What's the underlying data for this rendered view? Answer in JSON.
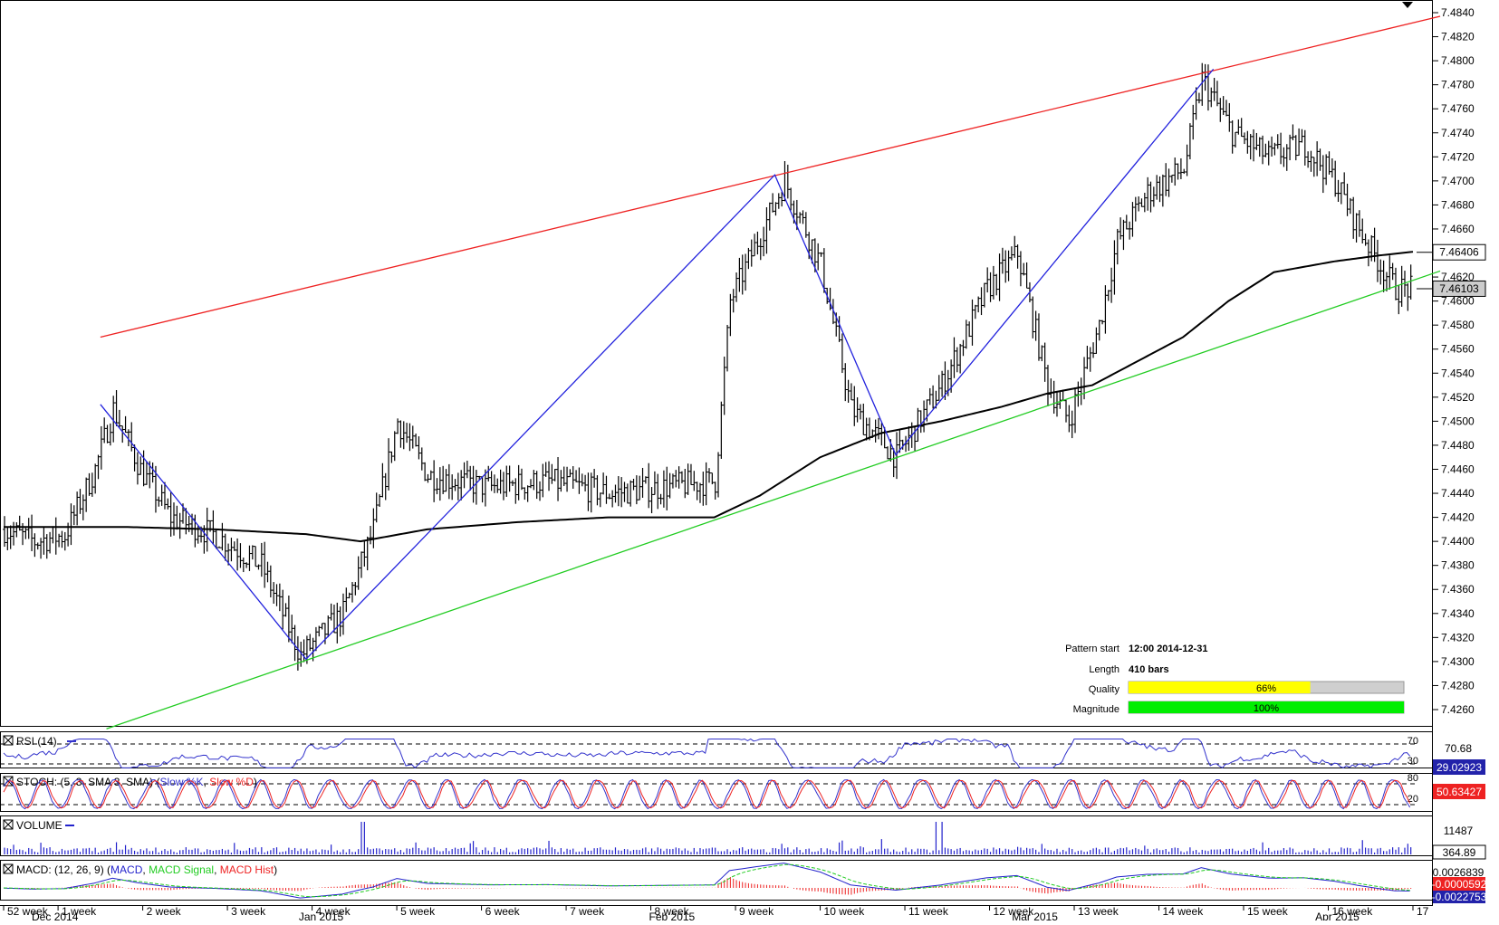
{
  "chart_data": {
    "type": "line",
    "subtype": "ohlc-bars",
    "pair_level_ticks": [
      7.484,
      7.482,
      7.48,
      7.478,
      7.476,
      7.474,
      7.472,
      7.47,
      7.468,
      7.466,
      7.464,
      7.462,
      7.46,
      7.458,
      7.456,
      7.454,
      7.452,
      7.45,
      7.448,
      7.446,
      7.444,
      7.442,
      7.44,
      7.438,
      7.436,
      7.434,
      7.432,
      7.43,
      7.428,
      7.426
    ],
    "tick_labels": [
      "7.4840",
      "7.4820",
      "7.4800",
      "7.4780",
      "7.4760",
      "7.4740",
      "7.4720",
      "7.4700",
      "7.4680",
      "7.4660",
      "7.4640",
      "7.4620",
      "7.4600",
      "7.4580",
      "7.4560",
      "7.4540",
      "7.4520",
      "7.4500",
      "7.4480",
      "7.4460",
      "7.4440",
      "7.4420",
      "7.4400",
      "7.4380",
      "7.4360",
      "7.4340",
      "7.4320",
      "7.4300",
      "7.4280",
      "7.4260"
    ],
    "ylim": [
      7.4248,
      7.485
    ],
    "grid": false,
    "price_anchors": [
      [
        0,
        7.441
      ],
      [
        10,
        7.44
      ],
      [
        20,
        7.4405
      ],
      [
        30,
        7.446
      ],
      [
        36,
        7.451
      ],
      [
        45,
        7.446
      ],
      [
        55,
        7.442
      ],
      [
        70,
        7.4405
      ],
      [
        85,
        7.438
      ],
      [
        98,
        7.4305
      ],
      [
        112,
        7.434
      ],
      [
        122,
        7.441
      ],
      [
        130,
        7.45
      ],
      [
        140,
        7.4455
      ],
      [
        160,
        7.4445
      ],
      [
        180,
        7.445
      ],
      [
        200,
        7.444
      ],
      [
        218,
        7.4445
      ],
      [
        235,
        7.445
      ],
      [
        240,
        7.46
      ],
      [
        258,
        7.47
      ],
      [
        270,
        7.463
      ],
      [
        280,
        7.451
      ],
      [
        295,
        7.447
      ],
      [
        310,
        7.453
      ],
      [
        325,
        7.461
      ],
      [
        335,
        7.464
      ],
      [
        345,
        7.453
      ],
      [
        352,
        7.45
      ],
      [
        362,
        7.458
      ],
      [
        368,
        7.465
      ],
      [
        378,
        7.469
      ],
      [
        390,
        7.471
      ],
      [
        396,
        7.4785
      ],
      [
        406,
        7.474
      ],
      [
        418,
        7.472
      ],
      [
        430,
        7.473
      ],
      [
        440,
        7.47
      ],
      [
        448,
        7.466
      ],
      [
        455,
        7.463
      ],
      [
        460,
        7.461
      ]
    ],
    "ma_anchors": [
      [
        0,
        7.4412
      ],
      [
        40,
        7.4412
      ],
      [
        70,
        7.441
      ],
      [
        100,
        7.4406
      ],
      [
        118,
        7.44
      ],
      [
        140,
        7.441
      ],
      [
        170,
        7.4416
      ],
      [
        200,
        7.442
      ],
      [
        235,
        7.442
      ],
      [
        250,
        7.4438
      ],
      [
        270,
        7.447
      ],
      [
        290,
        7.449
      ],
      [
        310,
        7.45
      ],
      [
        330,
        7.4512
      ],
      [
        345,
        7.4523
      ],
      [
        360,
        7.453
      ],
      [
        375,
        7.455
      ],
      [
        390,
        7.457
      ],
      [
        405,
        7.46
      ],
      [
        420,
        7.4624
      ],
      [
        440,
        7.4633
      ],
      [
        455,
        7.4638
      ],
      [
        466,
        7.4641
      ]
    ],
    "bar_count": 466,
    "series": [
      {
        "name": "",
        "kind": "ohlc",
        "color": "#000000"
      },
      {
        "name": "",
        "kind": "moving-average",
        "color": "#000000"
      }
    ],
    "pattern_lines": [
      {
        "kind": "resistance",
        "color": "#ee2222",
        "from": [
          32,
          7.457
        ],
        "to": [
          475,
          7.4837
        ]
      },
      {
        "kind": "support",
        "color": "#22cc22",
        "from": [
          34,
          7.4244
        ],
        "to": [
          475,
          7.4625
        ]
      }
    ],
    "zigzag": {
      "color": "#2222dd",
      "points": [
        [
          32,
          7.4514
        ],
        [
          100,
          7.4302
        ],
        [
          255,
          7.4705
        ],
        [
          295,
          7.4472
        ],
        [
          400,
          7.4793
        ]
      ]
    },
    "current_price_labels": [
      {
        "label": "7.46406",
        "value": 7.46406,
        "style": "white"
      },
      {
        "label": "7.46103",
        "value": 7.46103,
        "style": "grey"
      }
    ],
    "x_week_labels": [
      "52 week",
      "1 week",
      "2 week",
      "3 week",
      "4 week",
      "5 week",
      "6 week",
      "7 week",
      "8 week",
      "9 week",
      "10 week",
      "11 week",
      "12 week",
      "13 week",
      "14 week",
      "15 week",
      "16 week",
      "17"
    ],
    "x_week_bars": [
      0,
      18,
      46,
      74,
      102,
      130,
      158,
      186,
      214,
      242,
      270,
      298,
      326,
      354,
      382,
      410,
      438,
      466
    ],
    "x_month_labels": [
      "Dec 2014",
      "Jan 2015",
      "Feb 2015",
      "Mar 2015",
      "Apr 2015"
    ],
    "x_month_bars": [
      8,
      96,
      212,
      332,
      432
    ],
    "info_box": {
      "pattern_start_label": "Pattern start",
      "pattern_start_value": "12:00 2014-12-31",
      "length_label": "Length",
      "length_value": "410 bars",
      "quality_label": "Quality",
      "quality_value": "66%",
      "quality_fraction": 0.66,
      "quality_color": "#ffff00",
      "magnitude_label": "Magnitude",
      "magnitude_value": "100%",
      "magnitude_fraction": 1.0,
      "magnitude_color": "#00ee00"
    },
    "indicators": [
      {
        "name": "rsi",
        "title": "RSI (14)",
        "levels": [
          "70",
          "30"
        ],
        "axis_label": "70.68",
        "value_label": "29.02923",
        "series_color": "#3333cc"
      },
      {
        "name": "stoch",
        "title": "STOCH: (5, 3, SMA 3, SMA)",
        "title_parts": [
          "Slow %K",
          "Slow %D"
        ],
        "levels": [
          "80",
          "20"
        ],
        "value_label": "50.63427",
        "series_colors": [
          "#3333cc",
          "#ee2222"
        ]
      },
      {
        "name": "volume",
        "title": "VOLUME",
        "axis_label": "11487",
        "value_label": "364.89",
        "series_color": "#2222cc"
      },
      {
        "name": "macd",
        "title": "MACD: (12, 26, 9)",
        "title_parts": [
          "MACD",
          "MACD Signal",
          "MACD Hist"
        ],
        "axis_label": "0.0026839",
        "value_label": "-0.0000592",
        "value_label_2": "-0.0022753",
        "series_colors": [
          "#2222cc",
          "#22cc22",
          "#ee2222"
        ]
      }
    ]
  }
}
